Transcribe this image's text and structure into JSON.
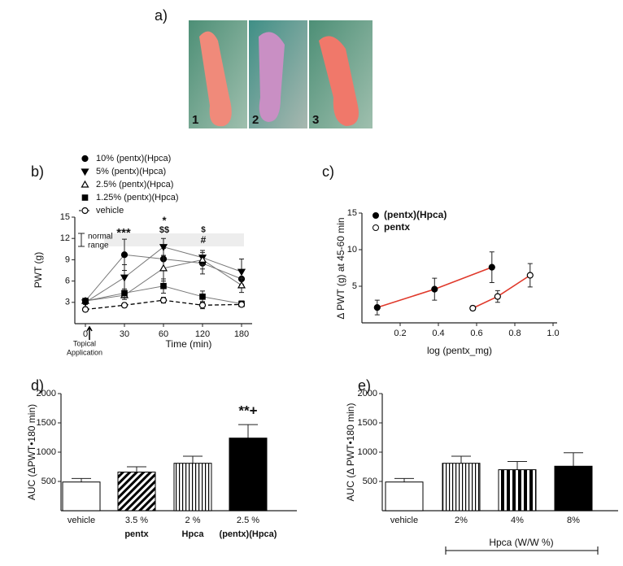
{
  "photos": {
    "panel": "a)",
    "labels": [
      "1",
      "2",
      "3"
    ]
  },
  "chart_data": [
    {
      "type": "line",
      "panel": "b)",
      "xlabel": "Time (min)",
      "ylabel": "PWT (g)",
      "categories": [
        "0",
        "30",
        "60",
        "120",
        "180"
      ],
      "ylim": [
        0,
        15
      ],
      "yticks": [
        3,
        6,
        9,
        12,
        15
      ],
      "series": [
        {
          "name": "10% (pentx)(Hpca)",
          "color": "#000000",
          "marker": "circle",
          "filled": true,
          "dashed": false,
          "values": [
            3.2,
            9.7,
            9.1,
            8.5,
            6.3
          ],
          "errors": [
            0.3,
            2.2,
            1.5,
            1.5,
            1.2
          ]
        },
        {
          "name": "5% (pentx)(Hpca)",
          "color": "#000000",
          "marker": "triangle-down",
          "filled": true,
          "dashed": false,
          "values": [
            3.0,
            6.5,
            10.8,
            9.3,
            7.3
          ],
          "errors": [
            0.3,
            1.8,
            1.2,
            1.0,
            1.8
          ]
        },
        {
          "name": "2.5% (pentx)(Hpca)",
          "color": "#000000",
          "marker": "triangle-up",
          "filled": false,
          "dashed": false,
          "values": [
            3.2,
            4.0,
            7.8,
            9.0,
            5.4
          ],
          "errors": [
            0.3,
            0.6,
            1.8,
            1.3,
            1.0
          ]
        },
        {
          "name": "1.25% (pentx)(Hpca)",
          "color": "#000000",
          "marker": "square",
          "filled": true,
          "dashed": false,
          "values": [
            3.2,
            4.3,
            5.3,
            3.8,
            2.8
          ],
          "errors": [
            0.2,
            0.6,
            1.0,
            0.8,
            0.4
          ]
        },
        {
          "name": "vehicle",
          "color": "#000000",
          "marker": "circle",
          "filled": false,
          "dashed": true,
          "values": [
            2.0,
            2.6,
            3.3,
            2.6,
            2.7
          ],
          "errors": [
            0.3,
            0.3,
            0.4,
            0.5,
            0.3
          ]
        }
      ],
      "annotations": [
        "***",
        "*",
        "$$",
        "$",
        "#",
        "normal",
        "range",
        "Topical",
        "Application"
      ]
    },
    {
      "type": "scatter",
      "panel": "c)",
      "xlabel": "log (pentx_mg)",
      "ylabel": "Δ PWT (g) at 45-60 min",
      "xlim": [
        0,
        1.0
      ],
      "xticks": [
        0.2,
        0.4,
        0.6,
        0.8,
        {
          "value": 1.0,
          "label": "1.0"
        }
      ],
      "ylim": [
        0,
        15
      ],
      "yticks": [
        5,
        10,
        15
      ],
      "fit_color": "#e0392b",
      "series": [
        {
          "name": "(pentx)(Hpca)",
          "color": "#000000",
          "filled": true,
          "x": [
            0.08,
            0.38,
            0.68
          ],
          "y": [
            2.1,
            4.6,
            7.6
          ],
          "errors": [
            1.0,
            1.5,
            2.1
          ]
        },
        {
          "name": "pentx",
          "color": "#000000",
          "filled": false,
          "x": [
            0.58,
            0.71,
            0.88
          ],
          "y": [
            2.0,
            3.6,
            6.5
          ],
          "errors": [
            0.3,
            0.8,
            1.6
          ]
        }
      ]
    },
    {
      "type": "bar",
      "panel": "d)",
      "ylabel": "AUC (ΔPWT•180 min)",
      "categories": [
        "vehicle",
        "3.5 %",
        "2 %",
        "2.5 %"
      ],
      "category_notes": [
        null,
        "pentx",
        "Hpca",
        "(pentx)(Hpca)"
      ],
      "values": [
        490,
        660,
        810,
        1240
      ],
      "errors": [
        60,
        90,
        120,
        230
      ],
      "fills": [
        "#ffffff",
        "hatch",
        "stripes",
        "#000000"
      ],
      "ylim": [
        0,
        2000
      ],
      "yticks": [
        500,
        1000,
        1500,
        2000
      ],
      "annotations": [
        "**+"
      ]
    },
    {
      "type": "bar",
      "panel": "e)",
      "ylabel": "AUC (Δ PWT•180 min)",
      "categories": [
        "vehicle",
        "2%",
        "4%",
        "8%"
      ],
      "category_notes": [
        null,
        null,
        null,
        null
      ],
      "values": [
        490,
        810,
        700,
        760
      ],
      "errors": [
        60,
        120,
        140,
        230
      ],
      "fills": [
        "#ffffff",
        "stripes",
        "bars",
        "#000000"
      ],
      "ylim": [
        0,
        2000
      ],
      "yticks": [
        500,
        1000,
        1500,
        2000
      ],
      "group_label": "Hpca (W/W %)"
    }
  ]
}
